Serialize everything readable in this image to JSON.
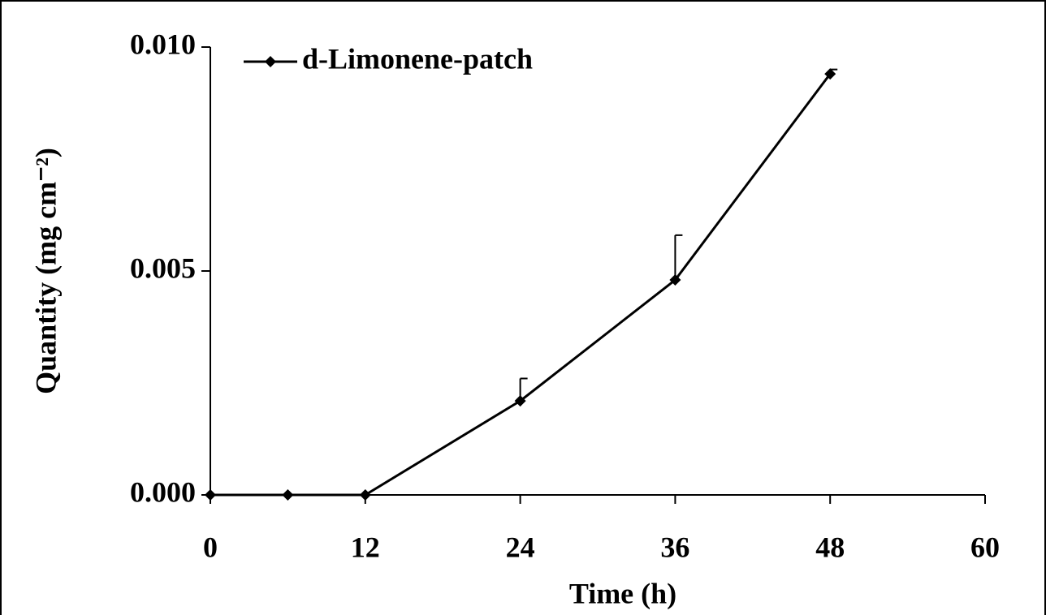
{
  "chart_data": {
    "type": "line",
    "x_label": "Time (h)",
    "y_label": "Quantity (mg cm⁻²)",
    "x": [
      0,
      6,
      12,
      24,
      36,
      48
    ],
    "series": [
      {
        "name": "d-Limonene-patch",
        "color": "#000000",
        "values": [
          0,
          0,
          0,
          0.0021,
          0.0048,
          0.0094
        ],
        "errors": [
          0,
          0,
          0,
          0.0005,
          0.001,
          0.0001
        ]
      }
    ],
    "xlim": [
      0,
      60
    ],
    "xticks": [
      0,
      12,
      24,
      36,
      48,
      60
    ],
    "ylim": [
      0,
      0.01
    ],
    "yticks": [
      {
        "value": 0,
        "label": "0.000"
      },
      {
        "value": 0.005,
        "label": "0.005"
      },
      {
        "value": 0.01,
        "label": "0.010"
      }
    ],
    "grid": false,
    "legend": "upper-left"
  }
}
